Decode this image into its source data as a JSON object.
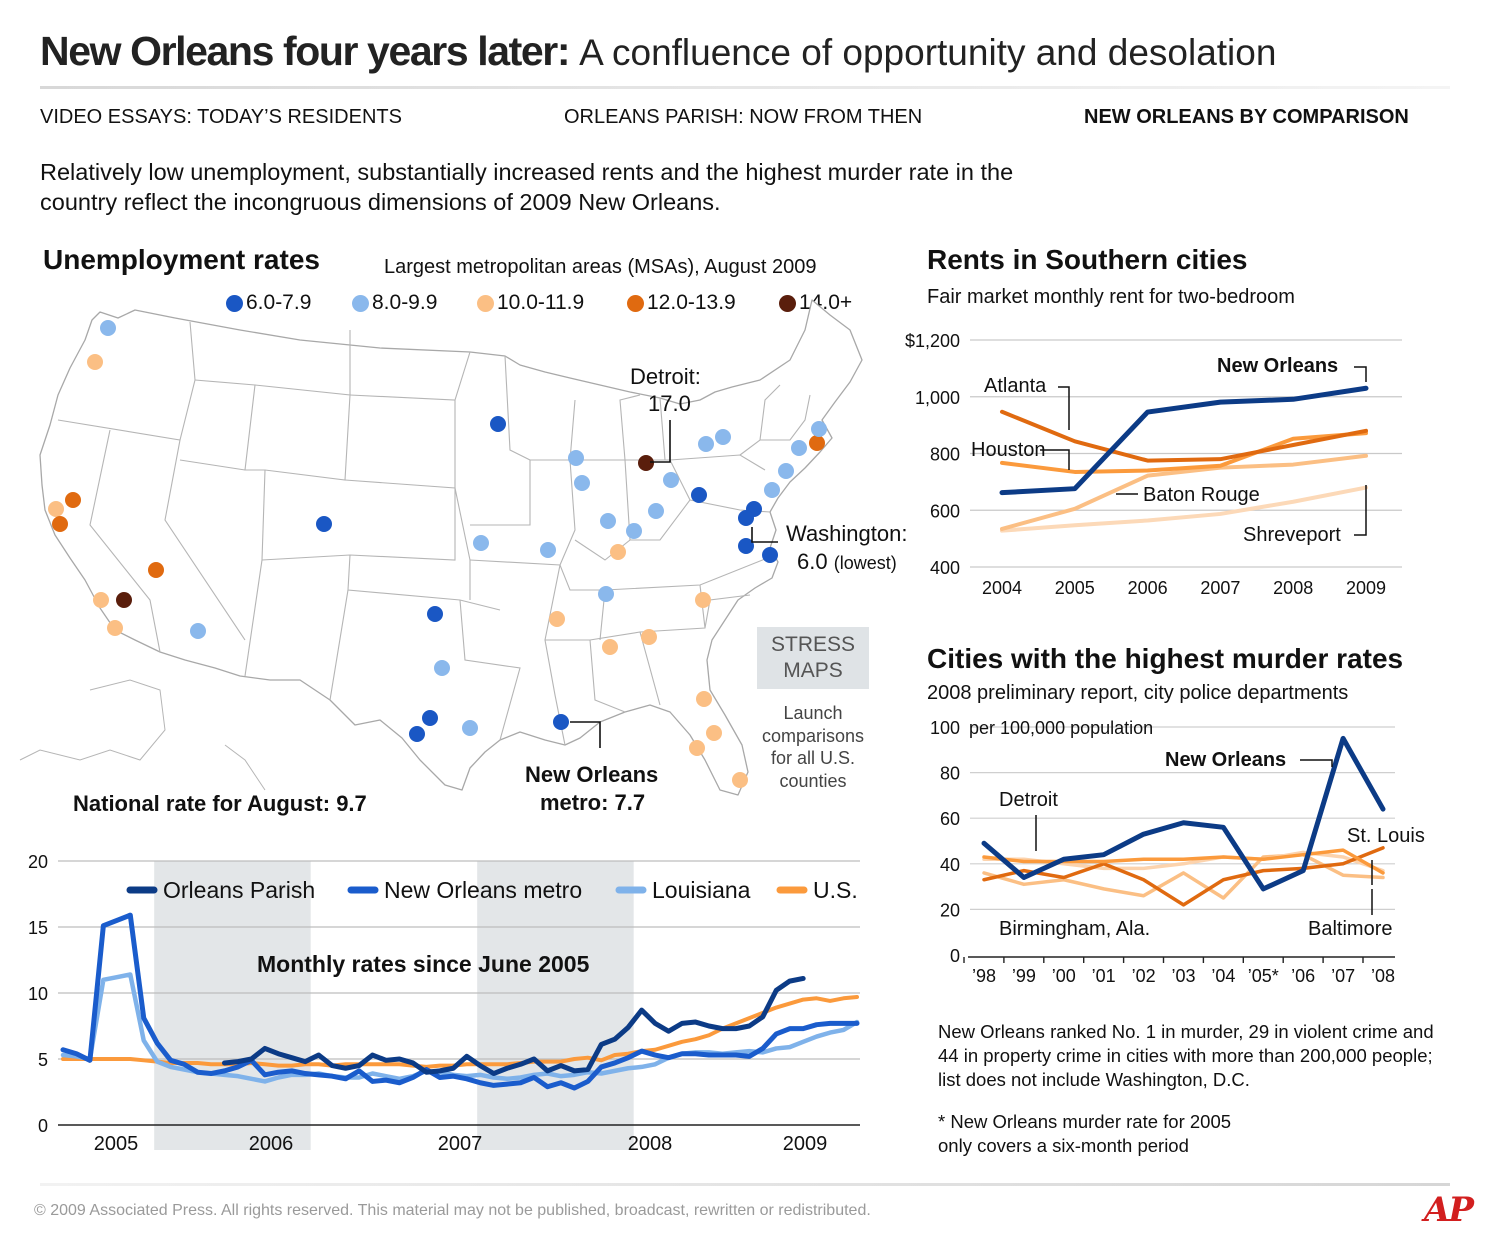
{
  "header": {
    "title_bold": "New Orleans four years later:",
    "title_light": "A confluence of opportunity and desolation"
  },
  "tabs": [
    {
      "label": "VIDEO ESSAYS: TODAY’S RESIDENTS",
      "active": false
    },
    {
      "label": "ORLEANS PARISH: NOW FROM THEN",
      "active": false
    },
    {
      "label": "NEW ORLEANS BY COMPARISON",
      "active": true
    }
  ],
  "intro": "Relatively low unemployment, substantially increased rents and the highest murder rate in the country reflect the incongruous dimensions of 2009 New Orleans.",
  "colors": {
    "band_6": "#1a57c4",
    "band_8": "#8ab8ec",
    "band_10": "#fbbf84",
    "band_12": "#e06a10",
    "band_14": "#5a1e0c",
    "orleans_parish": "#0c3b86",
    "no_metro": "#1a5ccc",
    "louisiana": "#7fb2ea",
    "us": "#fb9a3c"
  },
  "map": {
    "title": "Unemployment rates",
    "subtitle": "Largest metropolitan areas (MSAs), August 2009",
    "legend": [
      {
        "label": "6.0-7.9",
        "color": "#1a57c4"
      },
      {
        "label": "8.0-9.9",
        "color": "#8ab8ec"
      },
      {
        "label": "10.0-11.9",
        "color": "#fbbf84"
      },
      {
        "label": "12.0-13.9",
        "color": "#e06a10"
      },
      {
        "label": "14.0+",
        "color": "#5a1e0c"
      }
    ],
    "detroit_line1": "Detroit:",
    "detroit_line2": "17.0",
    "washington_line1": "Washington:",
    "washington_value": "6.0",
    "washington_note": "(lowest)",
    "no_line1": "New Orleans",
    "no_line2": "metro: 7.7",
    "national": "National rate for August: 9.7",
    "stress_line1": "STRESS",
    "stress_line2": "MAPS",
    "launch_text": "Launch comparisons for all U.S. counties"
  },
  "rents": {
    "title": "Rents in Southern cities",
    "subtitle": "Fair market monthly rent for two-bedroom",
    "labels": {
      "new_orleans": "New Orleans",
      "atlanta": "Atlanta",
      "houston": "Houston",
      "baton_rouge": "Baton Rouge",
      "shreveport": "Shreveport"
    }
  },
  "murder": {
    "title": "Cities with the highest murder rates",
    "subtitle": "2008 preliminary report, city police departments",
    "unit": "per 100,000 population",
    "labels": {
      "new_orleans": "New Orleans",
      "detroit": "Detroit",
      "st_louis": "St. Louis",
      "birmingham": "Birmingham, Ala.",
      "baltimore": "Baltimore"
    },
    "note1": "New Orleans ranked No. 1 in murder, 29 in violent crime and 44 in property crime in cities with more than 200,000 people; list does not include Washington, D.C.",
    "note2": "* New Orleans murder rate for 2005 only covers a six-month period"
  },
  "monthly": {
    "label": "Monthly rates since June 2005",
    "legend": [
      "Orleans Parish",
      "New Orleans metro",
      "Louisiana",
      "U.S."
    ]
  },
  "footer": "© 2009 Associated Press. All rights reserved. This material may not be published, broadcast, rewritten or redistributed.",
  "logo": "AP",
  "chart_data": [
    {
      "type": "scatter",
      "title": "Unemployment rates",
      "subtitle": "Largest metropolitan areas (MSAs), August 2009",
      "bands": [
        "6.0-7.9",
        "8.0-9.9",
        "10.0-11.9",
        "12.0-13.9",
        "14.0+"
      ],
      "markers": [
        {
          "band": 1,
          "x": 108,
          "y": 328
        },
        {
          "band": 2,
          "x": 95,
          "y": 362
        },
        {
          "band": 2,
          "x": 56,
          "y": 509
        },
        {
          "band": 3,
          "x": 73,
          "y": 500
        },
        {
          "band": 3,
          "x": 60,
          "y": 524
        },
        {
          "band": 3,
          "x": 156,
          "y": 570
        },
        {
          "band": 2,
          "x": 101,
          "y": 600
        },
        {
          "band": 4,
          "x": 124,
          "y": 600
        },
        {
          "band": 2,
          "x": 115,
          "y": 628
        },
        {
          "band": 1,
          "x": 198,
          "y": 631
        },
        {
          "band": 0,
          "x": 324,
          "y": 524
        },
        {
          "band": 0,
          "x": 498,
          "y": 424
        },
        {
          "band": 0,
          "x": 435,
          "y": 614
        },
        {
          "band": 1,
          "x": 442,
          "y": 668
        },
        {
          "band": 0,
          "x": 430,
          "y": 718
        },
        {
          "band": 0,
          "x": 417,
          "y": 734
        },
        {
          "band": 1,
          "x": 470,
          "y": 728
        },
        {
          "band": 0,
          "x": 561,
          "y": 722
        },
        {
          "band": 1,
          "x": 481,
          "y": 543
        },
        {
          "band": 1,
          "x": 548,
          "y": 550
        },
        {
          "band": 1,
          "x": 576,
          "y": 458
        },
        {
          "band": 1,
          "x": 582,
          "y": 483
        },
        {
          "band": 1,
          "x": 608,
          "y": 521
        },
        {
          "band": 1,
          "x": 634,
          "y": 531
        },
        {
          "band": 1,
          "x": 656,
          "y": 511
        },
        {
          "band": 2,
          "x": 618,
          "y": 552
        },
        {
          "band": 2,
          "x": 557,
          "y": 619
        },
        {
          "band": 2,
          "x": 610,
          "y": 647
        },
        {
          "band": 2,
          "x": 649,
          "y": 637
        },
        {
          "band": 1,
          "x": 606,
          "y": 594
        },
        {
          "band": 4,
          "x": 646,
          "y": 463
        },
        {
          "band": 1,
          "x": 671,
          "y": 480
        },
        {
          "band": 0,
          "x": 699,
          "y": 495
        },
        {
          "band": 1,
          "x": 706,
          "y": 444
        },
        {
          "band": 1,
          "x": 723,
          "y": 437
        },
        {
          "band": 1,
          "x": 799,
          "y": 448
        },
        {
          "band": 3,
          "x": 817,
          "y": 443
        },
        {
          "band": 1,
          "x": 819,
          "y": 429
        },
        {
          "band": 1,
          "x": 786,
          "y": 471
        },
        {
          "band": 1,
          "x": 772,
          "y": 490
        },
        {
          "band": 0,
          "x": 754,
          "y": 509
        },
        {
          "band": 0,
          "x": 746,
          "y": 518
        },
        {
          "band": 0,
          "x": 746,
          "y": 546
        },
        {
          "band": 0,
          "x": 770,
          "y": 555
        },
        {
          "band": 2,
          "x": 703,
          "y": 600
        },
        {
          "band": 2,
          "x": 704,
          "y": 699
        },
        {
          "band": 2,
          "x": 714,
          "y": 733
        },
        {
          "band": 2,
          "x": 697,
          "y": 748
        },
        {
          "band": 2,
          "x": 740,
          "y": 780
        }
      ]
    },
    {
      "type": "line",
      "title": "Rents in Southern cities",
      "subtitle": "Fair market monthly rent for two-bedroom",
      "x": [
        2004,
        2005,
        2006,
        2007,
        2008,
        2009
      ],
      "xtick_labels": [
        "2004",
        "2005",
        "2006",
        "2007",
        "2008",
        "2009"
      ],
      "ylim": [
        400,
        1200
      ],
      "yticks": [
        400,
        600,
        800,
        1000,
        1200
      ],
      "ytick_labels": [
        "400",
        "600",
        "800",
        "1,000",
        "$1,200"
      ],
      "series": [
        {
          "name": "New Orleans",
          "color": "#0c3b86",
          "width": 5,
          "values": [
            662,
            676,
            946,
            981,
            991,
            1030
          ]
        },
        {
          "name": "Atlanta",
          "color": "#e06a10",
          "width": 4,
          "values": [
            947,
            843,
            775,
            780,
            830,
            880
          ]
        },
        {
          "name": "Houston",
          "color": "#fb9a3c",
          "width": 4,
          "values": [
            767,
            735,
            740,
            757,
            852,
            872
          ]
        },
        {
          "name": "Baton Rouge",
          "color": "#fbbf84",
          "width": 4,
          "values": [
            534,
            605,
            722,
            750,
            761,
            792
          ]
        },
        {
          "name": "Shreveport",
          "color": "#fcd9b8",
          "width": 4,
          "values": [
            528,
            547,
            564,
            587,
            630,
            680
          ]
        }
      ]
    },
    {
      "type": "line",
      "title": "Cities with the highest murder rates",
      "subtitle": "2008 preliminary report, city police departments",
      "ylabel": "per 100,000 population",
      "x": [
        1998,
        1999,
        2000,
        2001,
        2002,
        2003,
        2004,
        2005,
        2006,
        2007,
        2008
      ],
      "xtick_labels": [
        "’98",
        "’99",
        "’00",
        "’01",
        "’02",
        "’03",
        "’04",
        "’05*",
        "’06",
        "’07",
        "’08"
      ],
      "ylim": [
        0,
        100
      ],
      "yticks": [
        0,
        20,
        40,
        60,
        80,
        100
      ],
      "series": [
        {
          "name": "Birmingham, Ala.",
          "color": "#fbbf84",
          "width": 3.5,
          "values": [
            36,
            31,
            33,
            29,
            26,
            36,
            25,
            43,
            44,
            35,
            34
          ]
        },
        {
          "name": "Baltimore",
          "color": "#fcd3ad",
          "width": 3.5,
          "values": [
            42,
            42,
            40,
            38,
            38,
            40,
            43,
            42,
            45,
            43,
            37
          ]
        },
        {
          "name": "St. Louis",
          "color": "#e06a10",
          "width": 3.5,
          "values": [
            33,
            37,
            34,
            40,
            33,
            22,
            33,
            37,
            38,
            40,
            47
          ]
        },
        {
          "name": "Detroit",
          "color": "#fb9a3c",
          "width": 3.5,
          "values": [
            43,
            41,
            41,
            41,
            42,
            42,
            43,
            42,
            44,
            46,
            36
          ]
        },
        {
          "name": "New Orleans",
          "color": "#0c3b86",
          "width": 5,
          "values": [
            49,
            34,
            42,
            44,
            53,
            58,
            56,
            29,
            37,
            95,
            64
          ]
        }
      ]
    },
    {
      "type": "line",
      "title": "Monthly rates since June 2005",
      "x_tick_labels": [
        "2005",
        "2006",
        "2007",
        "2008",
        "2009"
      ],
      "ylim": [
        0,
        20
      ],
      "yticks": [
        0,
        5,
        10,
        15,
        20
      ],
      "shaded_years": [
        "2006",
        "2008"
      ],
      "series": [
        {
          "name": "U.S.",
          "color": "#fb9a3c",
          "width": 4,
          "values": [
            5.0,
            5.0,
            5.0,
            5.0,
            5.0,
            5.0,
            4.9,
            4.8,
            4.7,
            4.7,
            4.7,
            4.6,
            4.6,
            4.6,
            4.7,
            4.6,
            4.5,
            4.5,
            4.6,
            4.6,
            4.5,
            4.6,
            4.6,
            4.6,
            4.6,
            4.6,
            4.5,
            4.4,
            4.5,
            4.5,
            4.6,
            4.6,
            4.6,
            4.6,
            4.7,
            4.8,
            4.8,
            4.8,
            5.0,
            5.1,
            4.9,
            5.3,
            5.4,
            5.6,
            5.7,
            6.0,
            6.3,
            6.5,
            6.8,
            7.3,
            7.7,
            8.1,
            8.5,
            8.9,
            9.2,
            9.5,
            9.6,
            9.4,
            9.6,
            9.7
          ]
        },
        {
          "name": "Louisiana",
          "color": "#7fb2ea",
          "width": 4.5,
          "values": [
            5.3,
            5.2,
            5.0,
            11.0,
            11.2,
            11.4,
            6.4,
            4.8,
            4.4,
            4.2,
            4.0,
            3.9,
            3.8,
            3.7,
            3.5,
            3.3,
            3.6,
            3.8,
            3.8,
            3.9,
            3.7,
            3.6,
            3.6,
            3.9,
            3.7,
            3.5,
            3.7,
            4.1,
            4.0,
            3.8,
            3.7,
            3.8,
            3.6,
            3.5,
            3.6,
            3.8,
            3.9,
            3.7,
            3.8,
            4.0,
            3.9,
            4.1,
            4.3,
            4.4,
            4.6,
            5.1,
            5.4,
            5.5,
            5.5,
            5.4,
            5.5,
            5.6,
            5.5,
            5.8,
            5.9,
            6.3,
            6.7,
            7.0,
            7.2,
            7.8
          ]
        },
        {
          "name": "New Orleans metro",
          "color": "#1a5ccc",
          "width": 5,
          "values": [
            5.7,
            5.4,
            4.9,
            15.1,
            15.5,
            15.9,
            8.1,
            6.2,
            4.9,
            4.6,
            4.0,
            3.9,
            4.1,
            4.4,
            4.9,
            3.8,
            4.0,
            4.1,
            3.9,
            3.8,
            3.7,
            3.5,
            4.1,
            3.3,
            3.4,
            3.2,
            3.6,
            4.2,
            3.6,
            3.7,
            3.5,
            3.2,
            3.0,
            3.1,
            3.2,
            3.6,
            2.9,
            3.2,
            2.8,
            3.3,
            4.4,
            4.7,
            5.1,
            5.6,
            5.3,
            5.1,
            5.4,
            5.4,
            5.3,
            5.3,
            5.3,
            5.2,
            5.8,
            6.9,
            7.3,
            7.3,
            7.6,
            7.7,
            7.7,
            7.7
          ]
        },
        {
          "name": "Orleans Parish",
          "color": "#0c3b86",
          "width": 5,
          "values": [
            null,
            null,
            null,
            null,
            null,
            null,
            null,
            null,
            null,
            null,
            null,
            null,
            4.7,
            4.8,
            5.0,
            5.8,
            5.4,
            5.1,
            4.8,
            5.3,
            4.5,
            4.3,
            4.5,
            5.3,
            4.9,
            5.0,
            4.7,
            4.0,
            4.1,
            4.3,
            5.2,
            4.5,
            3.9,
            4.3,
            4.6,
            5.0,
            4.1,
            4.5,
            4.1,
            4.2,
            6.1,
            6.5,
            7.4,
            8.7,
            7.7,
            7.1,
            7.7,
            7.8,
            7.5,
            7.3,
            7.3,
            7.5,
            8.2,
            10.2,
            10.9,
            11.1
          ]
        }
      ]
    }
  ]
}
